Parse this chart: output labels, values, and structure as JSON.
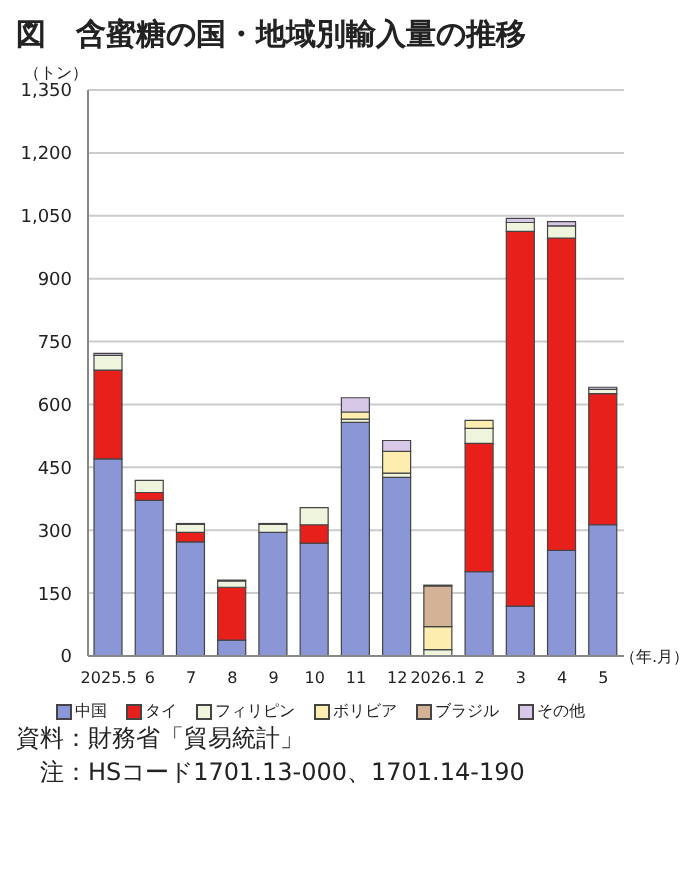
{
  "chart_data": {
    "type": "bar",
    "title": "図　含蜜糖の国・地域別輸入量の推移",
    "ylabel": "（トン）",
    "xlabel": "（年.月）",
    "stacked": true,
    "categories": [
      "2025.5",
      "6",
      "7",
      "8",
      "9",
      "10",
      "11",
      "12",
      "2026.1",
      "2",
      "3",
      "4",
      "5"
    ],
    "series": [
      {
        "name": "中国",
        "color": "#8a96d6",
        "values": [
          470,
          371,
          272,
          38,
          295,
          269,
          557,
          426,
          0,
          201,
          119,
          252,
          313
        ]
      },
      {
        "name": "タイ",
        "color": "#e8201c",
        "values": [
          212,
          19,
          23,
          126,
          0,
          44,
          0,
          0,
          0,
          306,
          894,
          745,
          313
        ]
      },
      {
        "name": "フィリピン",
        "color": "#eef5dc",
        "values": [
          35,
          29,
          19,
          15,
          19,
          41,
          8,
          10,
          15,
          36,
          21,
          29,
          10
        ]
      },
      {
        "name": "ボリビア",
        "color": "#fdeeb0",
        "values": [
          0,
          0,
          0,
          0,
          0,
          0,
          17,
          52,
          55,
          19,
          0,
          0,
          0
        ]
      },
      {
        "name": "ブラジル",
        "color": "#d4b296",
        "values": [
          0,
          0,
          0,
          0,
          0,
          0,
          0,
          0,
          97,
          0,
          0,
          0,
          0
        ]
      },
      {
        "name": "その他",
        "color": "#d8c8e8",
        "values": [
          5,
          null,
          2,
          2,
          2,
          null,
          34,
          26,
          2,
          null,
          10,
          10,
          5
        ]
      }
    ],
    "ylim": [
      0,
      1350
    ],
    "yticks": [
      0,
      150,
      300,
      450,
      600,
      750,
      900,
      {
        "value": 1050,
        "label": "1,050"
      },
      {
        "value": 1200,
        "label": "1,200"
      },
      {
        "value": 1350,
        "label": "1,350"
      }
    ],
    "grid": "y",
    "legend": "bottom",
    "annotations": [
      "資料：財務省「貿易統計」",
      "注：HSコード1701.13-000、1701.14-190"
    ]
  }
}
